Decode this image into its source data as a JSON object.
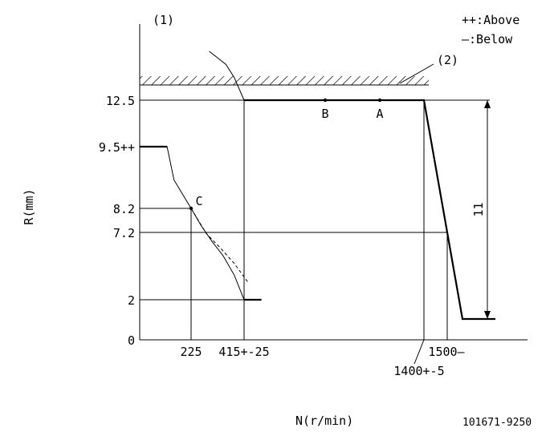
{
  "chart_data": {
    "type": "line",
    "title": "",
    "xlabel": "N(r/min)",
    "ylabel": "R(mm)",
    "figure_id": "101671-9250",
    "curve_label": "(1)",
    "stopper_label": "(2)",
    "legend": {
      "above": "++:Above",
      "below": "—:Below"
    },
    "y_ticks": [
      {
        "label": "12.5",
        "value": 12.5
      },
      {
        "label": "9.5++",
        "value": 9.5
      },
      {
        "label": "8.2",
        "value": 8.2
      },
      {
        "label": "7.2",
        "value": 7.2
      },
      {
        "label": "2",
        "value": 2
      },
      {
        "label": "0",
        "value": 0
      }
    ],
    "x_ticks": [
      {
        "label": "225",
        "value": 225
      },
      {
        "label": "415+-25",
        "value": 415
      },
      {
        "label": "1400+-5",
        "value": 1400
      },
      {
        "label": "1500—",
        "value": 1500
      }
    ],
    "points": [
      {
        "name": "B",
        "x": 1000,
        "y": 12.5
      },
      {
        "name": "A",
        "x": 1200,
        "y": 12.5
      },
      {
        "name": "C",
        "x": 225,
        "y": 8.2
      }
    ],
    "dimension": {
      "label": "11",
      "from": 12.5,
      "to": 1.5
    },
    "series": [
      {
        "style": "solid",
        "x": [
          0,
          120,
          150,
          225,
          260,
          300,
          340,
          380,
          415,
          540
        ],
        "y": [
          9.5,
          9.5,
          8.8,
          8.2,
          7.5,
          6.5,
          5.4,
          3.9,
          2.0,
          2.0
        ]
      },
      {
        "style": "solid",
        "x": [
          415,
          1400,
          1500,
          1565,
          1690
        ],
        "y": [
          12.5,
          12.5,
          7.2,
          1.5,
          1.5
        ]
      },
      {
        "style": "dashed",
        "x": [
          225,
          280,
          330,
          380,
          440
        ],
        "y": [
          8.2,
          7.1,
          6.0,
          4.8,
          3.4
        ]
      },
      {
        "style": "solid",
        "x": [
          290,
          350,
          380,
          415
        ],
        "y": [
          15.6,
          14.7,
          13.8,
          12.5
        ]
      }
    ],
    "stopper": {
      "value": 13.3,
      "x_start": 0,
      "x_end": 1390
    },
    "xlim": [
      0,
      1700
    ],
    "ylim": [
      0,
      15.5
    ],
    "grid": false
  }
}
